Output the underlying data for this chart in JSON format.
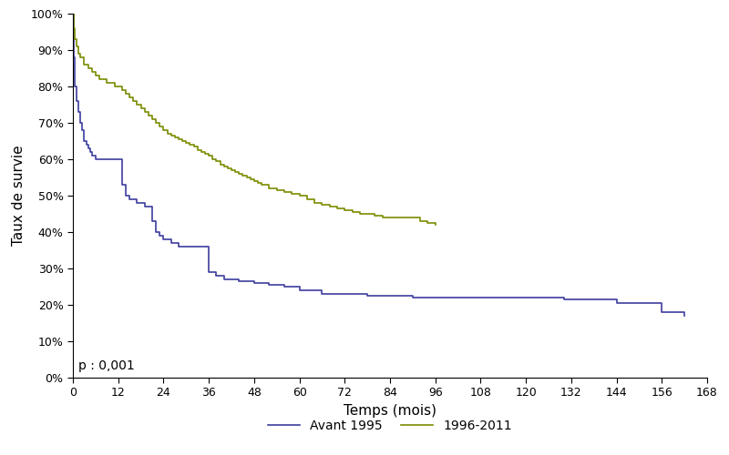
{
  "xlabel": "Temps (mois)",
  "ylabel": "Taux de survie",
  "annotation": "p : 0,001",
  "xlim": [
    0,
    168
  ],
  "ylim": [
    0,
    1.0
  ],
  "xticks": [
    0,
    12,
    24,
    36,
    48,
    60,
    72,
    84,
    96,
    108,
    120,
    132,
    144,
    156,
    168
  ],
  "yticks": [
    0,
    0.1,
    0.2,
    0.3,
    0.4,
    0.5,
    0.6,
    0.7,
    0.8,
    0.9,
    1.0
  ],
  "line1_color": "#3d3d9e",
  "line2_color": "#7c8b00",
  "line1_label": "Avant 1995",
  "line2_label": "1996-2011",
  "line1_x": [
    0,
    0.3,
    0.6,
    1,
    1.5,
    2,
    2.5,
    3,
    3.5,
    4,
    4.5,
    5,
    6,
    7,
    8,
    9,
    10,
    11,
    12,
    13,
    14,
    15,
    16,
    17,
    18,
    19,
    20,
    21,
    22,
    23,
    24,
    26,
    28,
    30,
    32,
    34,
    36,
    38,
    40,
    44,
    48,
    52,
    56,
    60,
    66,
    72,
    78,
    84,
    90,
    96,
    108,
    120,
    130,
    144,
    156,
    162
  ],
  "line1_y": [
    1.0,
    0.88,
    0.8,
    0.76,
    0.73,
    0.7,
    0.68,
    0.65,
    0.64,
    0.63,
    0.62,
    0.61,
    0.6,
    0.6,
    0.6,
    0.6,
    0.6,
    0.6,
    0.6,
    0.53,
    0.5,
    0.49,
    0.49,
    0.48,
    0.48,
    0.47,
    0.47,
    0.43,
    0.4,
    0.39,
    0.38,
    0.37,
    0.36,
    0.36,
    0.36,
    0.36,
    0.29,
    0.28,
    0.27,
    0.265,
    0.26,
    0.255,
    0.25,
    0.24,
    0.23,
    0.23,
    0.225,
    0.225,
    0.22,
    0.22,
    0.22,
    0.22,
    0.215,
    0.205,
    0.18,
    0.17
  ],
  "line2_x": [
    0,
    0.3,
    0.6,
    1,
    1.5,
    2,
    3,
    4,
    5,
    6,
    7,
    8,
    9,
    10,
    11,
    12,
    13,
    14,
    15,
    16,
    17,
    18,
    19,
    20,
    21,
    22,
    23,
    24,
    25,
    26,
    27,
    28,
    29,
    30,
    31,
    32,
    33,
    34,
    35,
    36,
    37,
    38,
    39,
    40,
    41,
    42,
    43,
    44,
    45,
    46,
    47,
    48,
    49,
    50,
    52,
    54,
    56,
    58,
    60,
    62,
    64,
    66,
    68,
    70,
    72,
    74,
    76,
    78,
    80,
    82,
    84,
    86,
    88,
    90,
    92,
    94,
    96
  ],
  "line2_y": [
    1.0,
    0.96,
    0.93,
    0.91,
    0.89,
    0.88,
    0.86,
    0.85,
    0.84,
    0.83,
    0.82,
    0.82,
    0.81,
    0.81,
    0.8,
    0.8,
    0.79,
    0.78,
    0.77,
    0.76,
    0.75,
    0.74,
    0.73,
    0.72,
    0.71,
    0.7,
    0.69,
    0.68,
    0.67,
    0.665,
    0.66,
    0.655,
    0.65,
    0.645,
    0.64,
    0.635,
    0.625,
    0.62,
    0.615,
    0.61,
    0.6,
    0.595,
    0.585,
    0.58,
    0.575,
    0.57,
    0.565,
    0.56,
    0.555,
    0.55,
    0.545,
    0.54,
    0.535,
    0.53,
    0.52,
    0.515,
    0.51,
    0.505,
    0.5,
    0.49,
    0.48,
    0.475,
    0.47,
    0.465,
    0.46,
    0.455,
    0.45,
    0.45,
    0.445,
    0.44,
    0.44,
    0.44,
    0.44,
    0.44,
    0.43,
    0.425,
    0.42
  ]
}
